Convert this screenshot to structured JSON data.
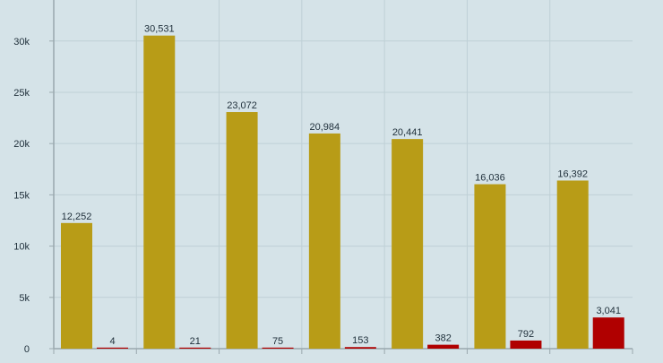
{
  "chart_data": {
    "type": "bar",
    "categories": [
      "",
      "",
      "",
      "",
      "",
      "",
      ""
    ],
    "series": [
      {
        "values": [
          12252,
          30531,
          23072,
          20984,
          20441,
          16036,
          16392
        ],
        "labels": [
          "12,252",
          "30,531",
          "23,072",
          "20,984",
          "20,441",
          "16,036",
          "16,392"
        ],
        "color": "#b89c17"
      },
      {
        "values": [
          4,
          21,
          75,
          153,
          382,
          792,
          3041
        ],
        "labels": [
          "4",
          "21",
          "75",
          "153",
          "382",
          "792",
          "3,041"
        ],
        "color": "#b00000"
      }
    ],
    "ylim": [
      0,
      34000
    ],
    "yticks": [
      0,
      5000,
      10000,
      15000,
      20000,
      25000,
      30000
    ],
    "ytick_labels": [
      "0",
      "5k",
      "10k",
      "15k",
      "20k",
      "25k",
      "30k"
    ],
    "grid": true,
    "colors": {
      "background": "#d5e3e8",
      "grid": "#bfd0d6",
      "axis": "#9aa8ae",
      "text": "#1f2f3a"
    }
  }
}
